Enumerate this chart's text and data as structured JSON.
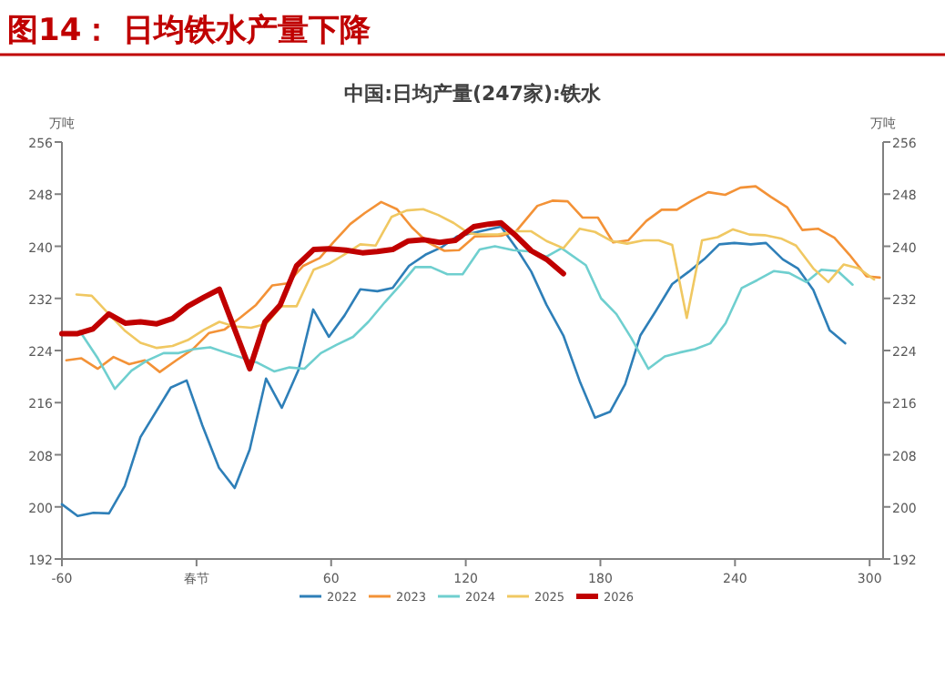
{
  "chart_data": {
    "type": "line",
    "title": "图14：  日均铁水产量下降",
    "subtitle": "中国:日均产量(247家):铁水",
    "ylabel": "万吨",
    "y2label": "万吨",
    "xlim": [
      -60,
      306
    ],
    "xticks": [
      -60,
      {
        "value": 0,
        "label": "春节"
      },
      60,
      120,
      180,
      240,
      300
    ],
    "ylim": [
      192,
      256
    ],
    "yticks": [
      192,
      200,
      208,
      216,
      224,
      232,
      240,
      248,
      256
    ],
    "y2lim": [
      192,
      256
    ],
    "y2ticks": [
      192,
      200,
      208,
      216,
      224,
      232,
      240,
      248,
      256
    ],
    "legend": "bottom",
    "grid": false,
    "marker": "none",
    "line_style": "solid",
    "series": [
      {
        "name": "2022",
        "color": "#2e7fb8",
        "x": [
          -60,
          -53,
          -46,
          -39,
          -32,
          -25,
          -11.5,
          -4.4,
          2.6,
          10,
          17,
          23.7,
          31,
          38,
          45.4,
          52,
          59,
          66,
          73,
          80.6,
          87.4,
          94.7,
          102,
          109,
          116,
          135.7,
          142.4,
          149.2,
          156,
          163.5,
          170.8,
          177.6,
          184.3,
          191,
          197.8,
          204.6,
          212,
          219.4,
          226.2,
          233,
          239.7,
          247,
          253.8,
          261.3,
          268,
          274.9,
          282.2,
          289.1
        ],
        "values": [
          200.4,
          198.6,
          199.1,
          199,
          203.2,
          210.7,
          218.3,
          219.4,
          212.5,
          206,
          202.9,
          208.8,
          219.7,
          215.2,
          221,
          230.3,
          226.1,
          229.4,
          233.4,
          233.1,
          233.6,
          237,
          238.7,
          239.8,
          241.5,
          243,
          239.8,
          236.1,
          231,
          226.3,
          219.3,
          213.7,
          214.6,
          218.8,
          226.3,
          230,
          234.2,
          236.1,
          238,
          240.3,
          240.5,
          240.3,
          240.5,
          238,
          236.6,
          233.3,
          227.1,
          225.1
        ]
      },
      {
        "name": "2023",
        "color": "#f39237",
        "x": [
          -58,
          -51.3,
          -44,
          -37,
          -30,
          -23,
          -16.4,
          -9,
          -1.7,
          5.6,
          12.4,
          19.7,
          26.5,
          33.8,
          40.5,
          47.6,
          54.9,
          61,
          68.5,
          75,
          82.3,
          89.3,
          96,
          103,
          110.5,
          117,
          124,
          135.7,
          142.4,
          151.9,
          158.6,
          165.4,
          172.1,
          178.9,
          185.7,
          192.4,
          200.5,
          207.3,
          214.1,
          220.8,
          228.1,
          235.6,
          242.4,
          249.2,
          255.9,
          263.2,
          270,
          277,
          284.3,
          291,
          298.6,
          304.5
        ],
        "values": [
          222.5,
          222.8,
          221.2,
          223,
          221.9,
          222.5,
          220.7,
          222.5,
          224.2,
          226.7,
          227.2,
          229.1,
          231,
          234,
          234.3,
          237,
          238.2,
          240.6,
          243.4,
          245.1,
          246.8,
          245.7,
          242.9,
          240.6,
          239.3,
          239.4,
          241.5,
          241.6,
          242.3,
          246.2,
          247,
          246.9,
          244.4,
          244.4,
          240.6,
          240.9,
          243.9,
          245.6,
          245.6,
          247,
          248.3,
          247.9,
          249,
          249.2,
          247.6,
          246,
          242.5,
          242.7,
          241.3,
          238.7,
          235.4,
          235.2
        ]
      },
      {
        "name": "2024",
        "color": "#6fcfcf",
        "x": [
          -52.1,
          -44,
          -36.4,
          -29,
          -22.3,
          -14.7,
          -8,
          -1.2,
          6.1,
          13.7,
          21,
          27.3,
          34.6,
          41.4,
          48.1,
          55.4,
          62.5,
          69.8,
          76.6,
          83.9,
          90.7,
          97.5,
          104.5,
          111.8,
          118.6,
          126.2,
          133,
          141.1,
          149.2,
          156,
          162.7,
          173.5,
          180.3,
          187.1,
          193.8,
          201.4,
          208.7,
          215.4,
          222.2,
          229,
          235.8,
          243,
          249.9,
          257.4,
          264.1,
          271.8,
          278.5,
          285.8,
          292.4
        ],
        "values": [
          227,
          222.8,
          218.1,
          220.9,
          222.4,
          223.6,
          223.6,
          224.2,
          224.5,
          223.6,
          222.8,
          222.1,
          220.8,
          221.4,
          221.2,
          223.6,
          224.9,
          226.1,
          228.4,
          231.4,
          234,
          236.8,
          236.8,
          235.7,
          235.7,
          239.5,
          240,
          239.4,
          239.2,
          238.4,
          239.7,
          237.1,
          232,
          229.6,
          225.9,
          221.2,
          223.1,
          223.7,
          224.2,
          225.1,
          228.2,
          233.6,
          234.8,
          236.2,
          235.9,
          234.5,
          236.4,
          236.2,
          234.1
        ]
      },
      {
        "name": "2025",
        "color": "#f0c862",
        "x": [
          -53.5,
          -46.7,
          -39.1,
          -31.8,
          -25,
          -17.7,
          -10.7,
          -3.9,
          3.4,
          10.2,
          17,
          24.3,
          31.1,
          37.8,
          44.6,
          52.2,
          58.9,
          65.7,
          73,
          79.8,
          86.9,
          93.7,
          101,
          107.7,
          114.5,
          121.3,
          126.2,
          134.3,
          142.4,
          149.2,
          156,
          163.5,
          170.8,
          177.6,
          185.1,
          191.9,
          199.2,
          206,
          212,
          218.5,
          225.3,
          232.3,
          239.1,
          246.4,
          253.2,
          260.5,
          267.2,
          274.9,
          281.6,
          288.4,
          295.2,
          302
        ],
        "values": [
          232.6,
          232.4,
          229.6,
          227,
          225.2,
          224.4,
          224.7,
          225.6,
          227.2,
          228.4,
          227.7,
          227.5,
          228.1,
          230.8,
          230.8,
          236.4,
          237.3,
          238.7,
          240.3,
          240.1,
          244.5,
          245.5,
          245.7,
          244.8,
          243.6,
          242,
          241.8,
          241.8,
          242.3,
          242.3,
          240.8,
          239.7,
          242.7,
          242.2,
          240.8,
          240.4,
          240.9,
          240.9,
          240.2,
          229,
          240.9,
          241.4,
          242.6,
          241.8,
          241.7,
          241.2,
          240.1,
          236.6,
          234.5,
          237.2,
          236.6,
          234.9
        ]
      },
      {
        "name": "2026",
        "color": "#c00000",
        "x": [
          -60,
          -53,
          -46.2,
          -39.1,
          -31.8,
          -25,
          -17.7,
          -10.7,
          -3.9,
          3.4,
          10.2,
          23.7,
          30.5,
          37.3,
          44.6,
          52.2,
          58.9,
          66.5,
          73.9,
          80.6,
          87.4,
          94.2,
          101.5,
          108.3,
          115.3,
          123.5,
          130.2,
          135.7,
          142.4,
          149.2,
          156,
          163.5
        ],
        "values": [
          226.6,
          226.6,
          227.3,
          229.6,
          228.2,
          228.4,
          228.1,
          228.9,
          230.8,
          232.2,
          233.4,
          221.2,
          228.4,
          231,
          237,
          239.5,
          239.6,
          239.4,
          239,
          239.2,
          239.5,
          240.8,
          241,
          240.6,
          240.9,
          243,
          243.4,
          243.6,
          241.6,
          239.3,
          238,
          235.8
        ]
      }
    ]
  }
}
